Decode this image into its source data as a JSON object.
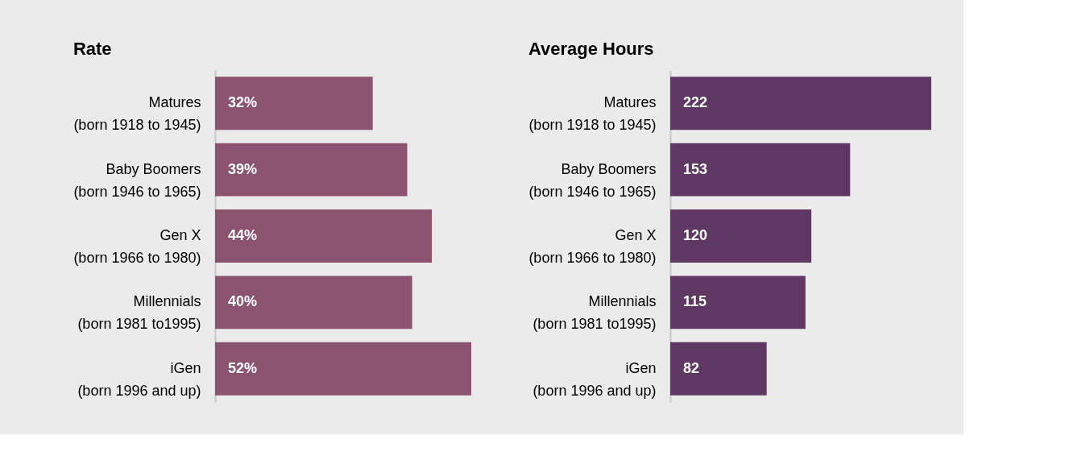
{
  "chart_data": [
    {
      "type": "bar",
      "orientation": "horizontal",
      "title": "Rate",
      "categories": [
        "Matures\n(born 1918 to 1945)",
        "Baby Boomers\n(born 1946 to 1965)",
        "Gen X\n(born 1966 to 1980)",
        "Millennials\n(born 1981 to1995)",
        "iGen\n(born 1996 and up)"
      ],
      "values": [
        32,
        39,
        44,
        40,
        52
      ],
      "value_labels": [
        "32%",
        "39%",
        "44%",
        "40%",
        "52%"
      ],
      "color": "#8b5370"
    },
    {
      "type": "bar",
      "orientation": "horizontal",
      "title": "Average Hours",
      "categories": [
        "Matures\n(born 1918 to 1945)",
        "Baby Boomers\n(born 1946 to 1965)",
        "Gen X\n(born 1966 to 1980)",
        "Millennials\n(born 1981 to1995)",
        "iGen\n(born 1996 and up)"
      ],
      "values": [
        222,
        153,
        120,
        115,
        82
      ],
      "data_labels": true,
      "color": "#5e3862"
    }
  ]
}
